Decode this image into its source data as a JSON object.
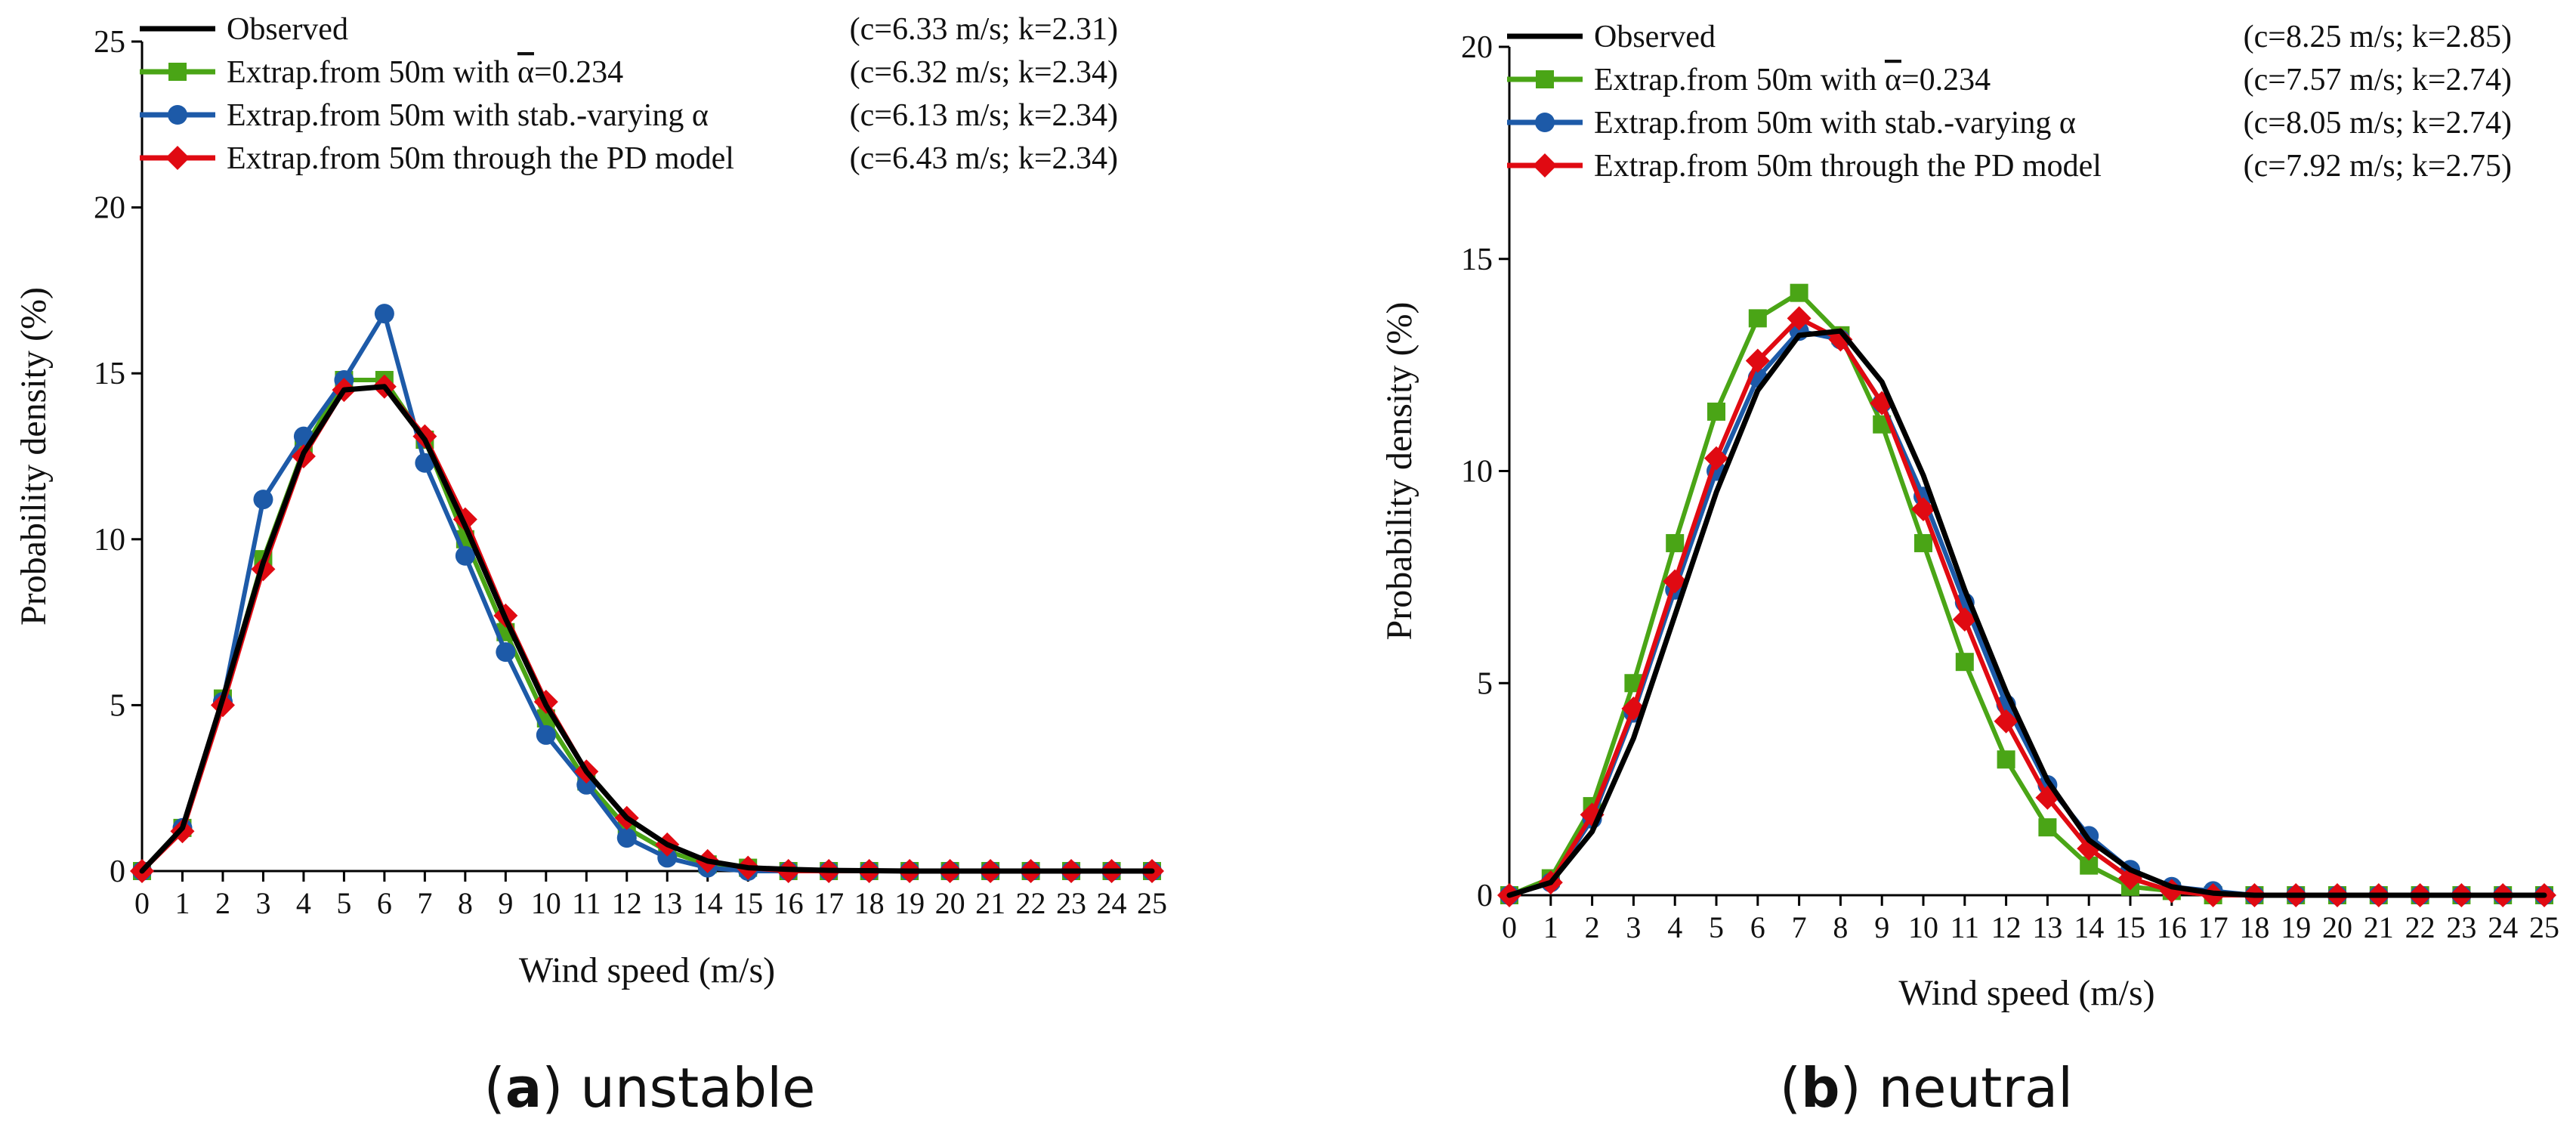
{
  "colors": {
    "observed": "#000000",
    "extrap_mean": "#4aa516",
    "extrap_stab": "#1d5aa8",
    "extrap_pd": "#e00a12",
    "axis": "#000000"
  },
  "chart_data": [
    {
      "id": "a",
      "type": "line",
      "xlabel": "Wind speed (m/s)",
      "ylabel": "Probability density (%)",
      "xlim": [
        0,
        25
      ],
      "ylim": [
        0,
        25
      ],
      "yticks": [
        0,
        5,
        10,
        15,
        20,
        25
      ],
      "x": [
        0,
        1,
        2,
        3,
        4,
        5,
        6,
        7,
        8,
        9,
        10,
        11,
        12,
        13,
        14,
        15,
        16,
        17,
        18,
        19,
        20,
        21,
        22,
        23,
        24,
        25
      ],
      "caption": {
        "letter": "a",
        "text": "unstable"
      },
      "legend_position": "top",
      "series": [
        {
          "key": "observed",
          "name": "Observed",
          "params": "(c=6.33 m/s; k=2.31)",
          "marker": "none",
          "values": [
            0,
            1.3,
            5.2,
            9.3,
            12.6,
            14.5,
            14.6,
            13.0,
            10.4,
            7.6,
            5.0,
            3.0,
            1.6,
            0.8,
            0.3,
            0.1,
            0.05,
            0.02,
            0.01,
            0,
            0,
            0,
            0,
            0,
            0,
            0
          ]
        },
        {
          "key": "extrap_mean",
          "name_prefix": "Extrap.from 50m with ",
          "symbol": "α",
          "name_suffix": "=0.234",
          "params": "(c=6.32 m/s; k=2.34)",
          "marker": "square",
          "values": [
            0,
            1.3,
            5.2,
            9.4,
            12.7,
            14.8,
            14.8,
            13.0,
            10.0,
            7.2,
            4.6,
            2.7,
            1.3,
            0.6,
            0.2,
            0.1,
            0,
            0,
            0,
            0,
            0,
            0,
            0,
            0,
            0,
            0
          ]
        },
        {
          "key": "extrap_stab",
          "name": "Extrap.from 50m with stab.-varying α",
          "params": "(c=6.13 m/s; k=2.34)",
          "marker": "circle",
          "values": [
            0,
            1.3,
            5.1,
            11.2,
            13.1,
            14.8,
            16.8,
            12.3,
            9.5,
            6.6,
            4.1,
            2.6,
            1.0,
            0.4,
            0.1,
            0,
            0,
            0,
            0,
            0,
            0,
            0,
            0,
            0,
            0,
            0
          ]
        },
        {
          "key": "extrap_pd",
          "name": "Extrap.from 50m through the PD model",
          "params": "(c=6.43 m/s; k=2.34)",
          "marker": "diamond",
          "values": [
            0,
            1.2,
            5.0,
            9.1,
            12.5,
            14.5,
            14.6,
            13.1,
            10.6,
            7.7,
            5.1,
            3.0,
            1.6,
            0.8,
            0.3,
            0.1,
            0,
            0,
            0,
            0,
            0,
            0,
            0,
            0,
            0,
            0
          ]
        }
      ]
    },
    {
      "id": "b",
      "type": "line",
      "xlabel": "Wind speed (m/s)",
      "ylabel": "Probability density (%)",
      "xlim": [
        0,
        25
      ],
      "ylim": [
        0,
        20
      ],
      "yticks": [
        0,
        5,
        10,
        15,
        20
      ],
      "x": [
        0,
        1,
        2,
        3,
        4,
        5,
        6,
        7,
        8,
        9,
        10,
        11,
        12,
        13,
        14,
        15,
        16,
        17,
        18,
        19,
        20,
        21,
        22,
        23,
        24,
        25
      ],
      "caption": {
        "letter": "b",
        "text": "neutral"
      },
      "legend_position": "top",
      "series": [
        {
          "key": "observed",
          "name": "Observed",
          "params": "(c=8.25 m/s; k=2.85)",
          "marker": "none",
          "values": [
            0,
            0.3,
            1.5,
            3.7,
            6.6,
            9.5,
            11.9,
            13.2,
            13.3,
            12.1,
            9.9,
            7.2,
            4.8,
            2.7,
            1.3,
            0.6,
            0.2,
            0.05,
            0,
            0,
            0,
            0,
            0,
            0,
            0,
            0
          ]
        },
        {
          "key": "extrap_mean",
          "name_prefix": "Extrap.from 50m with ",
          "symbol": "α",
          "name_suffix": "=0.234",
          "params": "(c=7.57 m/s; k=2.74)",
          "marker": "square",
          "values": [
            0,
            0.4,
            2.1,
            5.0,
            8.3,
            11.4,
            13.6,
            14.2,
            13.2,
            11.1,
            8.3,
            5.5,
            3.2,
            1.6,
            0.7,
            0.2,
            0.1,
            0,
            0,
            0,
            0,
            0,
            0,
            0,
            0,
            0
          ]
        },
        {
          "key": "extrap_stab",
          "name": "Extrap.from 50m with stab.-varying α",
          "params": "(c=8.05 m/s; k=2.74)",
          "marker": "circle",
          "values": [
            0,
            0.3,
            1.8,
            4.3,
            7.2,
            10.0,
            12.2,
            13.3,
            13.1,
            11.6,
            9.4,
            6.9,
            4.5,
            2.6,
            1.4,
            0.6,
            0.2,
            0.1,
            0,
            0,
            0,
            0,
            0,
            0,
            0,
            0
          ]
        },
        {
          "key": "extrap_pd",
          "name": "Extrap.from 50m through the PD model",
          "params": "(c=7.92 m/s; k=2.75)",
          "marker": "diamond",
          "values": [
            0,
            0.3,
            1.9,
            4.4,
            7.4,
            10.3,
            12.6,
            13.6,
            13.1,
            11.6,
            9.1,
            6.5,
            4.1,
            2.3,
            1.1,
            0.4,
            0.1,
            0,
            0,
            0,
            0,
            0,
            0,
            0,
            0,
            0
          ]
        }
      ]
    }
  ]
}
